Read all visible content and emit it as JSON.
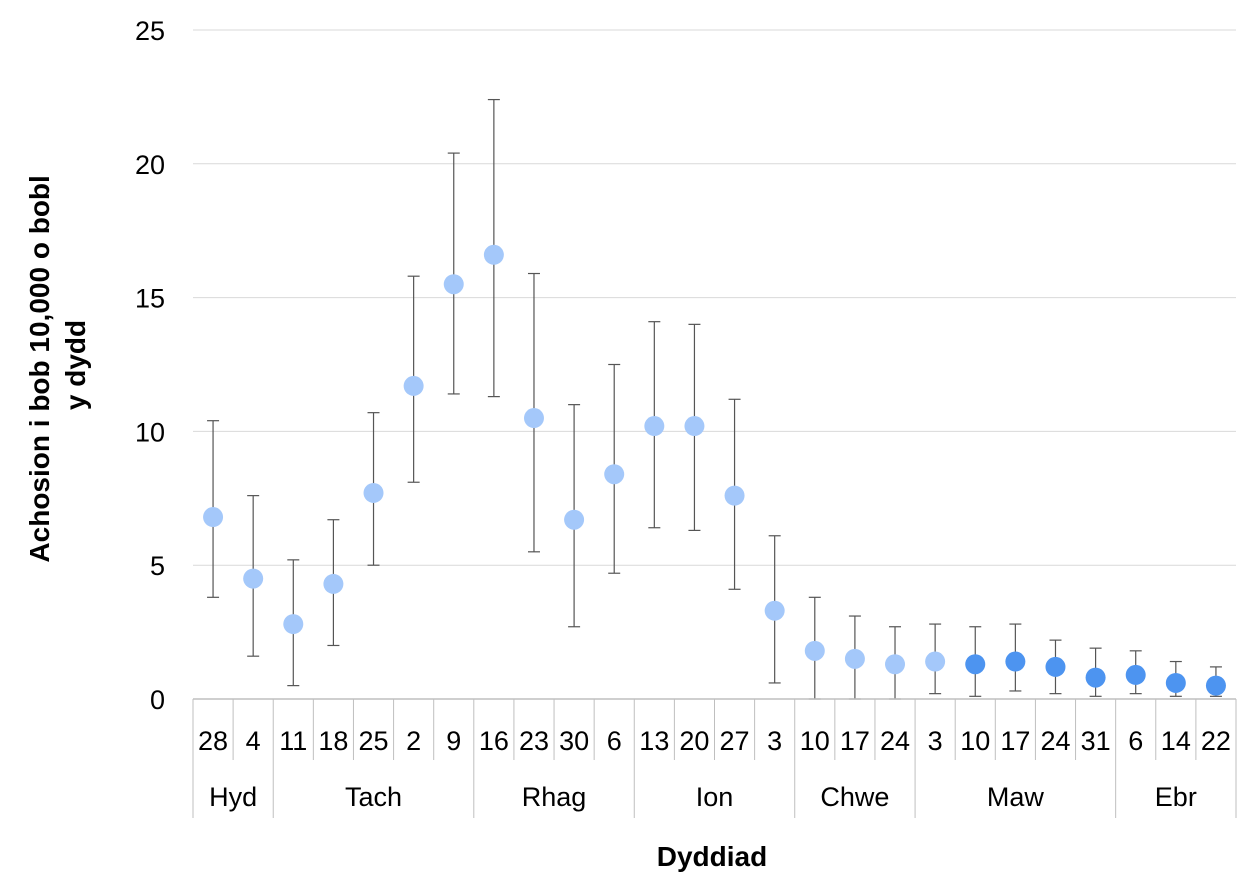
{
  "chart_data": {
    "type": "scatter",
    "xlabel": "Dyddiad",
    "ylabel_lines": [
      "Achosion i bob 10,000 o bobl",
      "y dydd"
    ],
    "ylim": [
      0,
      25
    ],
    "yticks": [
      0,
      5,
      10,
      15,
      20,
      25
    ],
    "grid": true,
    "categories": [
      "28",
      "4",
      "11",
      "18",
      "25",
      "2",
      "9",
      "16",
      "23",
      "30",
      "6",
      "13",
      "20",
      "27",
      "3",
      "10",
      "17",
      "24",
      "3",
      "10",
      "17",
      "24",
      "31",
      "6",
      "14",
      "22"
    ],
    "months": [
      {
        "label": "Hyd",
        "count": 2
      },
      {
        "label": "Tach",
        "count": 5
      },
      {
        "label": "Rhag",
        "count": 4
      },
      {
        "label": "Ion",
        "count": 4
      },
      {
        "label": "Chwe",
        "count": 3
      },
      {
        "label": "Maw",
        "count": 5
      },
      {
        "label": "Ebr",
        "count": 3
      }
    ],
    "values": [
      6.8,
      4.5,
      2.8,
      4.3,
      7.7,
      11.7,
      15.5,
      16.6,
      10.5,
      6.7,
      8.4,
      10.2,
      10.2,
      7.6,
      3.3,
      1.8,
      1.5,
      1.3,
      1.4,
      1.3,
      1.4,
      1.2,
      0.8,
      0.9,
      0.6,
      0.5
    ],
    "error_low": [
      3.8,
      1.6,
      0.5,
      2.0,
      5.0,
      8.1,
      11.4,
      11.3,
      5.5,
      2.7,
      4.7,
      6.4,
      6.3,
      4.1,
      0.6,
      0.0,
      0.0,
      0.0,
      0.2,
      0.1,
      0.3,
      0.2,
      0.1,
      0.2,
      0.1,
      0.1
    ],
    "error_high": [
      10.4,
      7.6,
      5.2,
      6.7,
      10.7,
      15.8,
      20.4,
      22.4,
      15.9,
      11.0,
      12.5,
      14.1,
      14.0,
      11.2,
      6.1,
      3.8,
      3.1,
      2.7,
      2.8,
      2.7,
      2.8,
      2.2,
      1.9,
      1.8,
      1.4,
      1.2
    ],
    "highlighted_from_index": 19,
    "colors": {
      "marker": "#a4c8fa",
      "marker_highlight": "#4d94f0",
      "error_bar": "#555555",
      "grid": "#d9d9d9",
      "axis": "#bfbfbf"
    }
  }
}
